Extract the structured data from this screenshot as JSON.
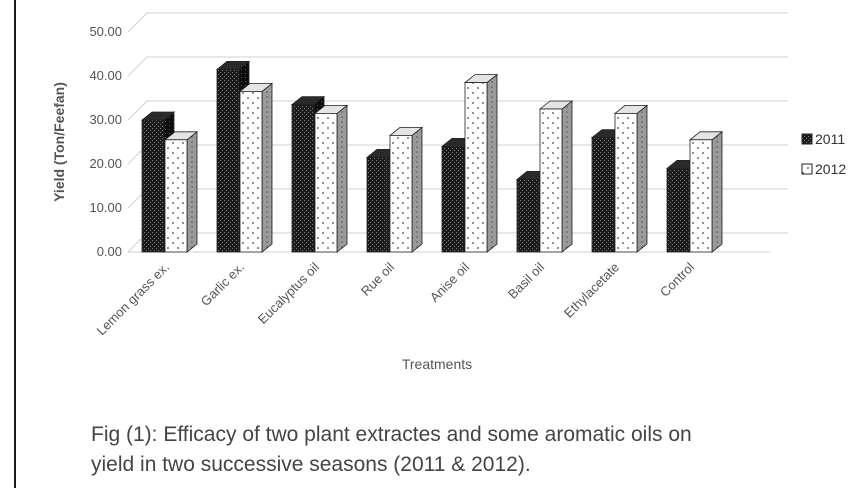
{
  "chart_data": {
    "type": "bar",
    "style": "3d-clustered",
    "ylabel": "Yield (Ton/Feefan)",
    "xlabel": "Treatments",
    "ylim": [
      0,
      50
    ],
    "yticks": [
      "0.00",
      "10.00",
      "20.00",
      "30.00",
      "40.00",
      "50.00"
    ],
    "grid": true,
    "legend_position": "right",
    "categories": [
      "Lemon grass ex.",
      "Garlic ex.",
      "Eucalyptus oil",
      "Rue oil",
      "Anise oil",
      "Basil oil",
      "Ethylacetate",
      "Control"
    ],
    "series": [
      {
        "name": "2011",
        "values": [
          30.0,
          41.5,
          33.5,
          21.5,
          24.0,
          16.5,
          26.0,
          19.0
        ],
        "color": "#1a1a1a",
        "pattern": "dark-checker"
      },
      {
        "name": "2012",
        "values": [
          25.5,
          36.5,
          31.5,
          26.5,
          38.5,
          32.5,
          31.5,
          25.5
        ],
        "color": "#ffffff",
        "pattern": "dotted"
      }
    ]
  },
  "caption": {
    "line1": "Fig (1): Efficacy of two plant extractes and some aromatic oils  on",
    "line2": "yield in two successive seasons (2011 & 2012)."
  }
}
